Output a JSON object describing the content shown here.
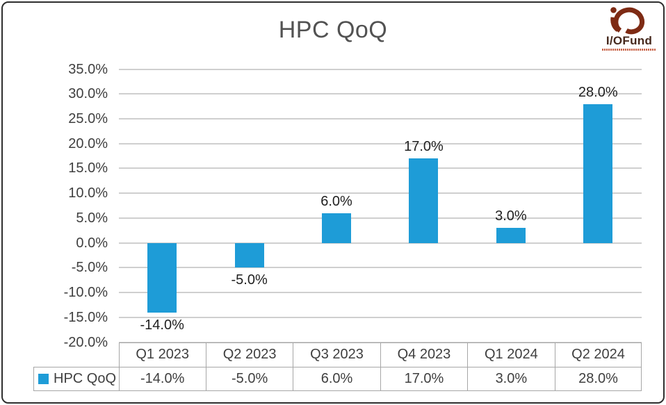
{
  "title": "HPC QoQ",
  "logo": {
    "text": "I/OFund"
  },
  "colors": {
    "bar": "#1e9cd7",
    "gridline": "#cfcfcf",
    "table_border": "#a6a6a6",
    "text": "#3f3f3f",
    "logo_mark": "#7e2b14"
  },
  "chart_data": {
    "type": "bar",
    "title": "HPC QoQ",
    "categories": [
      "Q1 2023",
      "Q2 2023",
      "Q3 2023",
      "Q4 2023",
      "Q1 2024",
      "Q2 2024"
    ],
    "series": [
      {
        "name": "HPC QoQ",
        "values": [
          -14,
          -5,
          6,
          17,
          3,
          28
        ]
      }
    ],
    "data_labels": [
      "-14.0%",
      "-5.0%",
      "6.0%",
      "17.0%",
      "3.0%",
      "28.0%"
    ],
    "xlabel": "",
    "ylabel": "",
    "ylim": [
      -20,
      35
    ],
    "ytick_step": 5,
    "ytick_labels": [
      "35.0%",
      "30.0%",
      "25.0%",
      "20.0%",
      "15.0%",
      "10.0%",
      "5.0%",
      "0.0%",
      "-5.0%",
      "-10.0%",
      "-15.0%",
      "-20.0%"
    ],
    "grid": true,
    "legend_position": "table-row-left"
  },
  "table": {
    "legend_label": "HPC QoQ",
    "headers": [
      "Q1 2023",
      "Q2 2023",
      "Q3 2023",
      "Q4 2023",
      "Q1 2024",
      "Q2 2024"
    ],
    "values": [
      "-14.0%",
      "-5.0%",
      "6.0%",
      "17.0%",
      "3.0%",
      "28.0%"
    ]
  }
}
